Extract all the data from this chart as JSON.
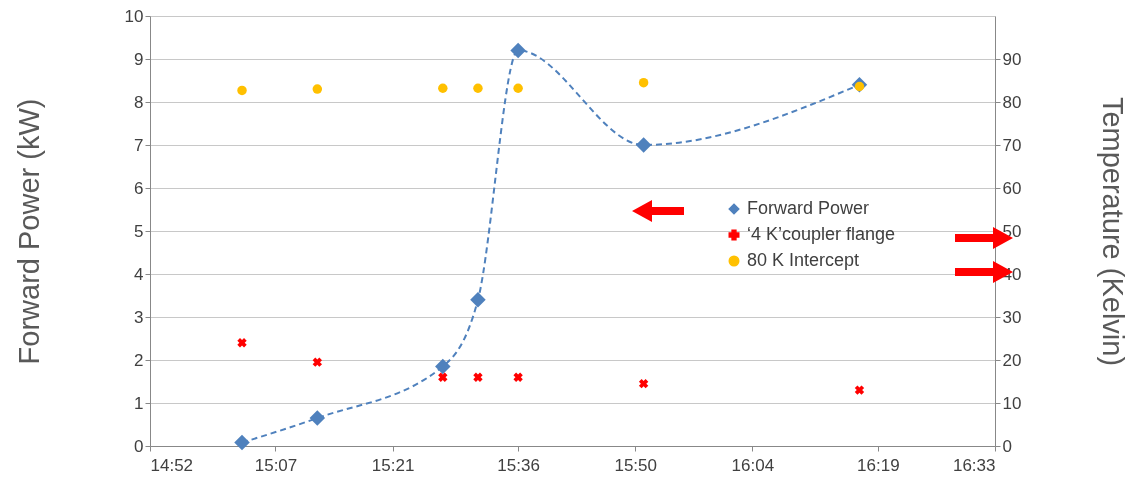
{
  "chart_data": {
    "type": "line",
    "ylabel": "Forward Power (kW)",
    "y2label": "Temperature (Kelvin)",
    "x": [
      15.05,
      15.2,
      15.45,
      15.52,
      15.6,
      15.85,
      16.28
    ],
    "xlim": [
      14.8667,
      16.55
    ],
    "xticks": [
      {
        "value": 14.8667,
        "label": "14:52"
      },
      {
        "value": 15.1167,
        "label": "15:07"
      },
      {
        "value": 15.35,
        "label": "15:21"
      },
      {
        "value": 15.6,
        "label": "15:36"
      },
      {
        "value": 15.8333,
        "label": "15:50"
      },
      {
        "value": 16.0667,
        "label": "16:04"
      },
      {
        "value": 16.3167,
        "label": "16:19"
      },
      {
        "value": 16.55,
        "label": "16:33"
      }
    ],
    "ylim": [
      0,
      10
    ],
    "yticks": [
      0,
      1,
      2,
      3,
      4,
      5,
      6,
      7,
      8,
      9,
      10
    ],
    "y2lim": [
      0,
      100
    ],
    "y2ticks": [
      0,
      10,
      20,
      30,
      40,
      50,
      60,
      70,
      80,
      90
    ],
    "grid": "y",
    "legend": "right",
    "series": [
      {
        "name": "Forward Power",
        "color": "#4f81bd",
        "marker": "diamond",
        "line_style": "dashed",
        "values": [
          0.08,
          0.65,
          1.85,
          3.4,
          9.2,
          7.0,
          8.4
        ]
      },
      {
        "name": "‘4 K’coupler flange",
        "color": "#ff0000",
        "type": "scatter",
        "marker": "cross",
        "axis": "y2",
        "values": [
          24,
          19.5,
          16,
          16,
          16,
          14.5,
          13
        ]
      },
      {
        "name": "80 K Intercept",
        "color": "#ffc000",
        "type": "scatter",
        "marker": "circle",
        "axis": "y2",
        "values": [
          82.7,
          83,
          83.2,
          83.2,
          83.2,
          84.5,
          83.6
        ]
      }
    ]
  }
}
